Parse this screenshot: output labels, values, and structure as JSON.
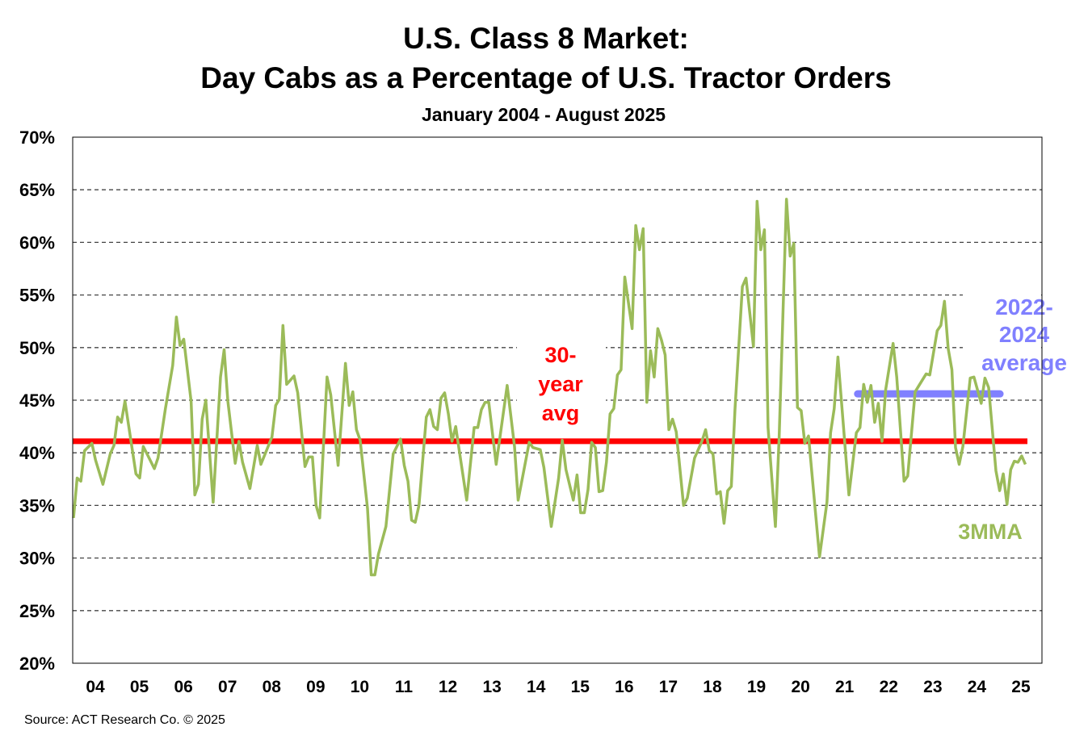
{
  "chart_data": {
    "type": "line",
    "title": [
      "U.S. Class 8 Market:",
      "Day Cabs as a Percentage of U.S. Tractor Orders"
    ],
    "subtitle": "January 2004 - August 2025",
    "source": "Source: ACT Research Co. © 2025",
    "ylim": [
      20,
      70
    ],
    "yticks": [
      20,
      25,
      30,
      35,
      40,
      45,
      50,
      55,
      60,
      65,
      70
    ],
    "ytick_labels": [
      "20%",
      "25%",
      "30%",
      "35%",
      "40%",
      "45%",
      "50%",
      "55%",
      "60%",
      "65%",
      "70%"
    ],
    "xlim": [
      "2004-01",
      "2025-08"
    ],
    "xtick_labels": [
      "04",
      "05",
      "06",
      "07",
      "08",
      "09",
      "10",
      "11",
      "12",
      "13",
      "14",
      "15",
      "16",
      "17",
      "18",
      "19",
      "20",
      "21",
      "22",
      "23",
      "24",
      "25"
    ],
    "grid": "horizontal dashed",
    "series": [
      {
        "name": "3MMA",
        "color": "#9bbb59",
        "points": [
          [
            "2004-01",
            33.8
          ],
          [
            "2004-02",
            37.6
          ],
          [
            "2004-03",
            37.3
          ],
          [
            "2004-04",
            40.2
          ],
          [
            "2004-06",
            40.9
          ],
          [
            "2004-07",
            39.3
          ],
          [
            "2004-09",
            37.0
          ],
          [
            "2004-11",
            39.9
          ],
          [
            "2004-12",
            40.7
          ],
          [
            "2005-01",
            43.4
          ],
          [
            "2005-02",
            42.9
          ],
          [
            "2005-03",
            44.9
          ],
          [
            "2005-06",
            38.0
          ],
          [
            "2005-07",
            37.6
          ],
          [
            "2005-08",
            40.6
          ],
          [
            "2005-09",
            39.9
          ],
          [
            "2005-11",
            38.5
          ],
          [
            "2005-12",
            39.5
          ],
          [
            "2006-02",
            44.2
          ],
          [
            "2006-04",
            48.3
          ],
          [
            "2006-05",
            52.9
          ],
          [
            "2006-06",
            50.2
          ],
          [
            "2006-07",
            50.8
          ],
          [
            "2006-09",
            44.9
          ],
          [
            "2006-10",
            36.0
          ],
          [
            "2006-11",
            37.0
          ],
          [
            "2006-12",
            43.2
          ],
          [
            "2007-01",
            45.0
          ],
          [
            "2007-03",
            35.3
          ],
          [
            "2007-05",
            47.2
          ],
          [
            "2007-06",
            49.8
          ],
          [
            "2007-07",
            44.9
          ],
          [
            "2007-09",
            39.0
          ],
          [
            "2007-10",
            41.1
          ],
          [
            "2007-11",
            39.1
          ],
          [
            "2008-01",
            36.6
          ],
          [
            "2008-03",
            40.7
          ],
          [
            "2008-04",
            38.9
          ],
          [
            "2008-07",
            41.5
          ],
          [
            "2008-08",
            44.5
          ],
          [
            "2008-09",
            45.1
          ],
          [
            "2008-10",
            52.1
          ],
          [
            "2008-11",
            46.5
          ],
          [
            "2009-01",
            47.3
          ],
          [
            "2009-02",
            45.7
          ],
          [
            "2009-04",
            38.7
          ],
          [
            "2009-05",
            39.6
          ],
          [
            "2009-06",
            39.6
          ],
          [
            "2009-07",
            35.0
          ],
          [
            "2009-08",
            33.8
          ],
          [
            "2009-10",
            47.2
          ],
          [
            "2009-11",
            45.5
          ],
          [
            "2010-01",
            38.8
          ],
          [
            "2010-03",
            48.5
          ],
          [
            "2010-04",
            44.5
          ],
          [
            "2010-05",
            45.8
          ],
          [
            "2010-06",
            42.2
          ],
          [
            "2010-07",
            41.2
          ],
          [
            "2010-09",
            34.7
          ],
          [
            "2010-10",
            28.4
          ],
          [
            "2010-11",
            28.4
          ],
          [
            "2010-12",
            30.4
          ],
          [
            "2011-02",
            33.0
          ],
          [
            "2011-04",
            39.9
          ],
          [
            "2011-06",
            41.3
          ],
          [
            "2011-07",
            38.8
          ],
          [
            "2011-08",
            37.3
          ],
          [
            "2011-09",
            33.6
          ],
          [
            "2011-10",
            33.4
          ],
          [
            "2011-11",
            35.0
          ],
          [
            "2012-01",
            43.4
          ],
          [
            "2012-02",
            44.1
          ],
          [
            "2012-03",
            42.5
          ],
          [
            "2012-04",
            42.2
          ],
          [
            "2012-05",
            45.2
          ],
          [
            "2012-06",
            45.7
          ],
          [
            "2012-07",
            43.7
          ],
          [
            "2012-08",
            41.1
          ],
          [
            "2012-09",
            42.5
          ],
          [
            "2012-10",
            40.1
          ],
          [
            "2012-12",
            35.5
          ],
          [
            "2013-02",
            42.4
          ],
          [
            "2013-03",
            42.4
          ],
          [
            "2013-04",
            44.1
          ],
          [
            "2013-05",
            44.8
          ],
          [
            "2013-06",
            44.8
          ],
          [
            "2013-08",
            38.9
          ],
          [
            "2013-11",
            46.4
          ],
          [
            "2014-01",
            40.6
          ],
          [
            "2014-02",
            35.5
          ],
          [
            "2014-05",
            41.0
          ],
          [
            "2014-06",
            40.5
          ],
          [
            "2014-08",
            40.3
          ],
          [
            "2014-09",
            38.6
          ],
          [
            "2014-11",
            33.0
          ],
          [
            "2015-01",
            37.6
          ],
          [
            "2015-02",
            41.2
          ],
          [
            "2015-03",
            38.4
          ],
          [
            "2015-05",
            35.5
          ],
          [
            "2015-06",
            37.9
          ],
          [
            "2015-07",
            34.3
          ],
          [
            "2015-08",
            34.3
          ],
          [
            "2015-09",
            36.5
          ],
          [
            "2015-10",
            41.0
          ],
          [
            "2015-11",
            40.5
          ],
          [
            "2015-12",
            36.3
          ],
          [
            "2016-01",
            36.4
          ],
          [
            "2016-02",
            39.1
          ],
          [
            "2016-03",
            43.7
          ],
          [
            "2016-04",
            44.2
          ],
          [
            "2016-05",
            47.4
          ],
          [
            "2016-06",
            47.9
          ],
          [
            "2016-07",
            56.7
          ],
          [
            "2016-09",
            51.8
          ],
          [
            "2016-10",
            61.6
          ],
          [
            "2016-11",
            59.3
          ],
          [
            "2016-12",
            61.3
          ],
          [
            "2017-01",
            44.8
          ],
          [
            "2017-02",
            49.7
          ],
          [
            "2017-03",
            47.2
          ],
          [
            "2017-04",
            51.8
          ],
          [
            "2017-05",
            50.7
          ],
          [
            "2017-06",
            49.3
          ],
          [
            "2017-07",
            42.2
          ],
          [
            "2017-08",
            43.2
          ],
          [
            "2017-09",
            42.0
          ],
          [
            "2017-11",
            35.0
          ],
          [
            "2017-12",
            35.7
          ],
          [
            "2018-02",
            39.5
          ],
          [
            "2018-04",
            41.1
          ],
          [
            "2018-05",
            42.2
          ],
          [
            "2018-06",
            40.2
          ],
          [
            "2018-07",
            39.9
          ],
          [
            "2018-08",
            36.1
          ],
          [
            "2018-09",
            36.3
          ],
          [
            "2018-10",
            33.3
          ],
          [
            "2018-11",
            36.4
          ],
          [
            "2018-12",
            36.8
          ],
          [
            "2019-01",
            44.2
          ],
          [
            "2019-03",
            55.8
          ],
          [
            "2019-04",
            56.6
          ],
          [
            "2019-06",
            50.1
          ],
          [
            "2019-07",
            63.9
          ],
          [
            "2019-08",
            59.3
          ],
          [
            "2019-09",
            61.2
          ],
          [
            "2019-10",
            42.4
          ],
          [
            "2019-12",
            33.0
          ],
          [
            "2020-01",
            41.4
          ],
          [
            "2020-03",
            64.1
          ],
          [
            "2020-04",
            58.7
          ],
          [
            "2020-05",
            59.9
          ],
          [
            "2020-06",
            44.3
          ],
          [
            "2020-07",
            44.0
          ],
          [
            "2020-08",
            40.9
          ],
          [
            "2020-09",
            41.6
          ],
          [
            "2020-12",
            30.1
          ],
          [
            "2021-02",
            35.3
          ],
          [
            "2021-03",
            41.9
          ],
          [
            "2021-04",
            44.2
          ],
          [
            "2021-05",
            49.1
          ],
          [
            "2021-08",
            36.0
          ],
          [
            "2021-10",
            41.9
          ],
          [
            "2021-11",
            42.4
          ],
          [
            "2021-12",
            46.5
          ],
          [
            "2022-01",
            44.8
          ],
          [
            "2022-02",
            46.4
          ],
          [
            "2022-03",
            42.9
          ],
          [
            "2022-04",
            44.7
          ],
          [
            "2022-05",
            41.1
          ],
          [
            "2022-06",
            46.0
          ],
          [
            "2022-08",
            50.4
          ],
          [
            "2022-09",
            47.2
          ],
          [
            "2022-11",
            37.3
          ],
          [
            "2022-12",
            37.8
          ],
          [
            "2023-02",
            45.8
          ],
          [
            "2023-05",
            47.5
          ],
          [
            "2023-06",
            47.4
          ],
          [
            "2023-08",
            51.6
          ],
          [
            "2023-09",
            52.1
          ],
          [
            "2023-10",
            54.4
          ],
          [
            "2023-11",
            49.9
          ],
          [
            "2023-12",
            47.9
          ],
          [
            "2024-01",
            40.5
          ],
          [
            "2024-02",
            38.9
          ],
          [
            "2024-03",
            40.6
          ],
          [
            "2024-05",
            47.1
          ],
          [
            "2024-06",
            47.2
          ],
          [
            "2024-08",
            44.7
          ],
          [
            "2024-09",
            47.1
          ],
          [
            "2024-10",
            46.2
          ],
          [
            "2024-12",
            38.3
          ],
          [
            "2025-01",
            36.4
          ],
          [
            "2025-02",
            38.0
          ],
          [
            "2025-03",
            35.1
          ],
          [
            "2025-04",
            38.4
          ],
          [
            "2025-05",
            39.2
          ],
          [
            "2025-06",
            39.1
          ],
          [
            "2025-07",
            39.7
          ],
          [
            "2025-08",
            38.9
          ]
        ]
      }
    ],
    "reference_lines": [
      {
        "label_lines": [
          "30-",
          "year",
          "avg"
        ],
        "value": 41.1,
        "from": "2004-01",
        "to": "2025-08",
        "color": "#ff0000"
      },
      {
        "label_lines": [
          "2022-",
          "2024",
          "average"
        ],
        "value": 45.6,
        "from": "2022-01",
        "to": "2024-12",
        "color": "#8080ff"
      }
    ]
  }
}
